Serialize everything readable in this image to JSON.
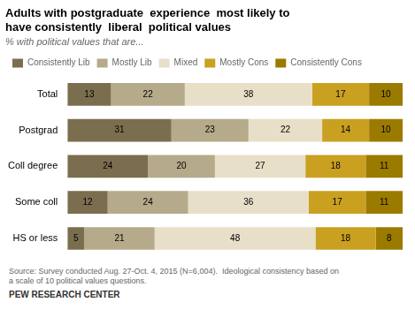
{
  "chart_data": {
    "type": "bar",
    "orientation": "horizontal",
    "stacked": true,
    "title": [
      "Adults with postgraduate  experience  most likely to",
      "have consistently  liberal  political values"
    ],
    "subtitle": "% with political values that are...",
    "categories": [
      "Total",
      "Postgrad",
      "Coll degree",
      "Some coll",
      "HS or less"
    ],
    "series": [
      {
        "name": "Consistently Lib",
        "color": "#7b6e4e",
        "values": [
          13,
          31,
          24,
          12,
          5
        ]
      },
      {
        "name": "Mostly Lib",
        "color": "#b5aa8a",
        "values": [
          22,
          23,
          20,
          24,
          21
        ]
      },
      {
        "name": "Mixed",
        "color": "#e8dfc8",
        "values": [
          38,
          22,
          27,
          36,
          48
        ]
      },
      {
        "name": "Mostly Cons",
        "color": "#c9a020",
        "values": [
          17,
          14,
          18,
          17,
          18
        ]
      },
      {
        "name": "Consistently Cons",
        "color": "#9b7a00",
        "values": [
          10,
          10,
          11,
          11,
          8
        ]
      }
    ],
    "xlim": [
      0,
      100
    ],
    "tick_labels": "y",
    "grid": false,
    "legend": "top",
    "data_labels": true,
    "annotations": [
      "Source: Survey conducted Aug. 27-Oct. 4, 2015 (N=6,004).  Ideological consistency based on\na scale of 10 political values questions.",
      "PEW RESEARCH CENTER"
    ]
  }
}
